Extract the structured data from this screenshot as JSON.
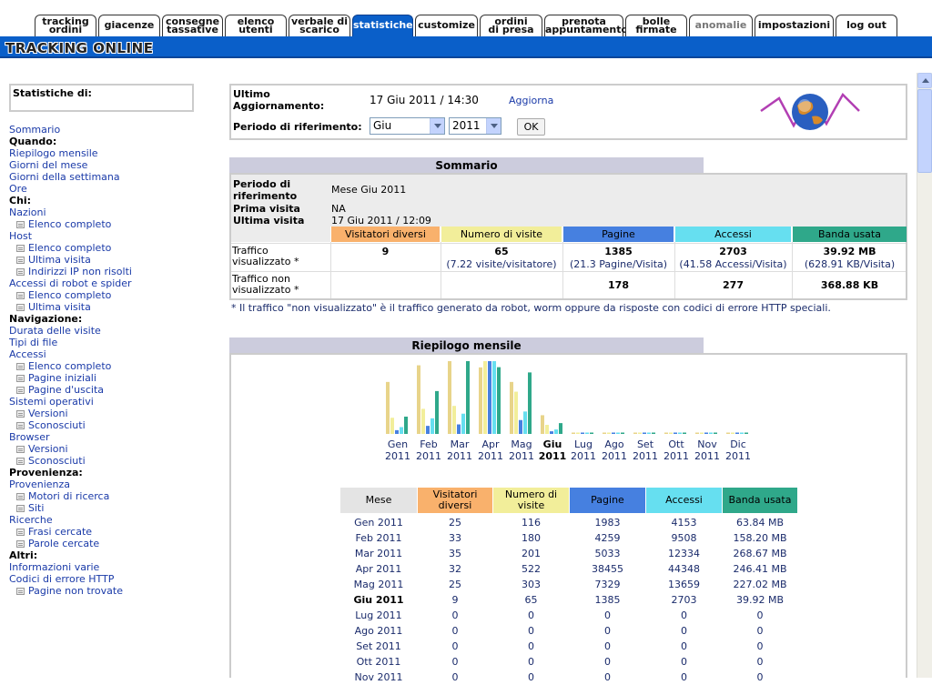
{
  "tabs": [
    {
      "label": "tracking ordini",
      "lines": [
        "tracking",
        "ordini"
      ],
      "state": "normal"
    },
    {
      "label": "giacenze",
      "lines": [
        "giacenze"
      ],
      "state": "normal"
    },
    {
      "label": "consegne tassative",
      "lines": [
        "consegne",
        "tassative"
      ],
      "state": "normal"
    },
    {
      "label": "elenco utenti",
      "lines": [
        "elenco",
        "utenti"
      ],
      "state": "normal"
    },
    {
      "label": "verbale di scarico",
      "lines": [
        "verbale di",
        "scarico"
      ],
      "state": "normal"
    },
    {
      "label": "statistiche",
      "lines": [
        "statistiche"
      ],
      "state": "active"
    },
    {
      "label": "customize",
      "lines": [
        "customize"
      ],
      "state": "normal"
    },
    {
      "label": "ordini di presa",
      "lines": [
        "ordini",
        "di presa"
      ],
      "state": "normal"
    },
    {
      "label": "prenota appuntamento",
      "lines": [
        "prenota",
        "appuntamento"
      ],
      "state": "normal"
    },
    {
      "label": "bolle firmate",
      "lines": [
        "bolle",
        "firmate"
      ],
      "state": "normal"
    },
    {
      "label": "anomalie",
      "lines": [
        "anomalie"
      ],
      "state": "grey"
    },
    {
      "label": "impostazioni",
      "lines": [
        "impostazioni"
      ],
      "state": "normal"
    },
    {
      "label": "log out",
      "lines": [
        "log out"
      ],
      "state": "normal"
    }
  ],
  "brand": "TRACKING ONLINE",
  "leftmenu": {
    "title": "Statistiche di:",
    "items": [
      {
        "text": "Sommario",
        "kind": "link"
      },
      {
        "text": "Quando:",
        "kind": "head"
      },
      {
        "text": "Riepilogo mensile",
        "kind": "link"
      },
      {
        "text": "Giorni del mese",
        "kind": "link"
      },
      {
        "text": "Giorni della settimana",
        "kind": "link"
      },
      {
        "text": "Ore",
        "kind": "link"
      },
      {
        "text": "Chi:",
        "kind": "head"
      },
      {
        "text": "Nazioni",
        "kind": "link"
      },
      {
        "text": "Elenco completo",
        "kind": "sub"
      },
      {
        "text": "Host",
        "kind": "link"
      },
      {
        "text": "Elenco completo",
        "kind": "sub"
      },
      {
        "text": "Ultima visita",
        "kind": "sub"
      },
      {
        "text": "Indirizzi IP non risolti",
        "kind": "sub"
      },
      {
        "text": "Accessi di robot e spider",
        "kind": "link"
      },
      {
        "text": "Elenco completo",
        "kind": "sub"
      },
      {
        "text": "Ultima visita",
        "kind": "sub"
      },
      {
        "text": "Navigazione:",
        "kind": "head"
      },
      {
        "text": "Durata delle visite",
        "kind": "link"
      },
      {
        "text": "Tipi di file",
        "kind": "link"
      },
      {
        "text": "Accessi",
        "kind": "link"
      },
      {
        "text": "Elenco completo",
        "kind": "sub"
      },
      {
        "text": "Pagine iniziali",
        "kind": "sub"
      },
      {
        "text": "Pagine d'uscita",
        "kind": "sub"
      },
      {
        "text": "Sistemi operativi",
        "kind": "link"
      },
      {
        "text": "Versioni",
        "kind": "sub"
      },
      {
        "text": "Sconosciuti",
        "kind": "sub"
      },
      {
        "text": "Browser",
        "kind": "link"
      },
      {
        "text": "Versioni",
        "kind": "sub"
      },
      {
        "text": "Sconosciuti",
        "kind": "sub"
      },
      {
        "text": "Provenienza:",
        "kind": "head"
      },
      {
        "text": "Provenienza",
        "kind": "link"
      },
      {
        "text": "Motori di ricerca",
        "kind": "sub"
      },
      {
        "text": "Siti",
        "kind": "sub"
      },
      {
        "text": "Ricerche",
        "kind": "link"
      },
      {
        "text": "Frasi cercate",
        "kind": "sub"
      },
      {
        "text": "Parole cercate",
        "kind": "sub"
      },
      {
        "text": "Altri:",
        "kind": "head"
      },
      {
        "text": "Informazioni varie",
        "kind": "link"
      },
      {
        "text": "Codici di errore HTTP",
        "kind": "link"
      },
      {
        "text": "Pagine non trovate",
        "kind": "sub"
      }
    ]
  },
  "info": {
    "last_update_label_1": "Ultimo",
    "last_update_label_2": "Aggiornamento:",
    "last_update_value": "17 Giu 2011 / 14:30",
    "refresh_link": "Aggiorna",
    "period_label": "Periodo di riferimento:",
    "month_value": "Giu",
    "year_value": "2011",
    "ok_label": "OK"
  },
  "sommario": {
    "title": "Sommario",
    "period_label_1": "Periodo di",
    "period_label_2": "riferimento",
    "period_value": "Mese Giu 2011",
    "first_visit_label": "Prima visita",
    "first_visit_value": "NA",
    "last_visit_label": "Ultima visita",
    "last_visit_value": "17 Giu 2011 / 12:09",
    "headers": [
      "Visitatori diversi",
      "Numero di visite",
      "Pagine",
      "Accessi",
      "Banda usata"
    ],
    "header_colors": [
      "#f9b16c",
      "#f2ee9a",
      "#4680e0",
      "#66dff0",
      "#2fa88a"
    ],
    "row1_label_1": "Traffico",
    "row1_label_2": "visualizzato *",
    "row1_values": [
      "9",
      "65",
      "1385",
      "2703",
      "39.92 MB"
    ],
    "row1_sub": [
      "",
      "(7.22 visite/visitatore)",
      "(21.3 Pagine/Visita)",
      "(41.58 Accessi/Visita)",
      "(628.91 KB/Visita)"
    ],
    "row2_label_1": "Traffico non",
    "row2_label_2": "visualizzato *",
    "row2_values": [
      "",
      "",
      "178",
      "277",
      "368.88 KB"
    ],
    "footnote": "* Il traffico \"non visualizzato\" è il traffico generato da robot, worm oppure da risposte con codici di errore HTTP speciali."
  },
  "riepilogo": {
    "title": "Riepilogo mensile",
    "month_header": "Mese",
    "columns": [
      "Visitatori diversi",
      "Numero di visite",
      "Pagine",
      "Accessi",
      "Banda usata"
    ],
    "rows": [
      {
        "mese": "Gen 2011",
        "vis": "25",
        "visite": "116",
        "pagine": "1983",
        "accessi": "4153",
        "banda": "63.84 MB",
        "current": false
      },
      {
        "mese": "Feb 2011",
        "vis": "33",
        "visite": "180",
        "pagine": "4259",
        "accessi": "9508",
        "banda": "158.20 MB",
        "current": false
      },
      {
        "mese": "Mar 2011",
        "vis": "35",
        "visite": "201",
        "pagine": "5033",
        "accessi": "12334",
        "banda": "268.67 MB",
        "current": false
      },
      {
        "mese": "Apr 2011",
        "vis": "32",
        "visite": "522",
        "pagine": "38455",
        "accessi": "44348",
        "banda": "246.41 MB",
        "current": false
      },
      {
        "mese": "Mag 2011",
        "vis": "25",
        "visite": "303",
        "pagine": "7329",
        "accessi": "13659",
        "banda": "227.02 MB",
        "current": false
      },
      {
        "mese": "Giu 2011",
        "vis": "9",
        "visite": "65",
        "pagine": "1385",
        "accessi": "2703",
        "banda": "39.92 MB",
        "current": true
      },
      {
        "mese": "Lug 2011",
        "vis": "0",
        "visite": "0",
        "pagine": "0",
        "accessi": "0",
        "banda": "0",
        "current": false
      },
      {
        "mese": "Ago 2011",
        "vis": "0",
        "visite": "0",
        "pagine": "0",
        "accessi": "0",
        "banda": "0",
        "current": false
      },
      {
        "mese": "Set 2011",
        "vis": "0",
        "visite": "0",
        "pagine": "0",
        "accessi": "0",
        "banda": "0",
        "current": false
      },
      {
        "mese": "Ott 2011",
        "vis": "0",
        "visite": "0",
        "pagine": "0",
        "accessi": "0",
        "banda": "0",
        "current": false
      },
      {
        "mese": "Nov 2011",
        "vis": "0",
        "visite": "0",
        "pagine": "0",
        "accessi": "0",
        "banda": "0",
        "current": false
      }
    ]
  },
  "chart_data": {
    "type": "bar",
    "categories": [
      "Gen",
      "Feb",
      "Mar",
      "Apr",
      "Mag",
      "Giu",
      "Lug",
      "Ago",
      "Set",
      "Ott",
      "Nov",
      "Dic"
    ],
    "year": "2011",
    "highlight": "Giu",
    "series": [
      {
        "name": "Visitatori diversi",
        "color": "#e8d48a",
        "values": [
          25,
          33,
          35,
          32,
          25,
          9,
          0,
          0,
          0,
          0,
          0,
          0
        ]
      },
      {
        "name": "Numero di visite",
        "color": "#f2ee9a",
        "values": [
          116,
          180,
          201,
          522,
          303,
          65,
          0,
          0,
          0,
          0,
          0,
          0
        ]
      },
      {
        "name": "Pagine",
        "color": "#4680e0",
        "values": [
          1983,
          4259,
          5033,
          38455,
          7329,
          1385,
          0,
          0,
          0,
          0,
          0,
          0
        ]
      },
      {
        "name": "Accessi",
        "color": "#66dff0",
        "values": [
          4153,
          9508,
          12334,
          44348,
          13659,
          2703,
          0,
          0,
          0,
          0,
          0,
          0
        ]
      },
      {
        "name": "Banda usata (MB)",
        "color": "#2fa88a",
        "values": [
          63.84,
          158.2,
          268.67,
          246.41,
          227.02,
          39.92,
          0,
          0,
          0,
          0,
          0,
          0
        ]
      }
    ]
  }
}
